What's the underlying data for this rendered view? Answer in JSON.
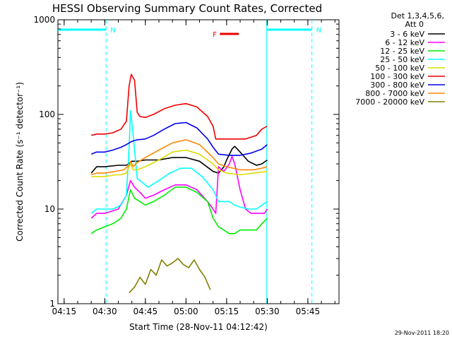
{
  "chart_data": {
    "type": "line",
    "title": "HESSI Observing Summary Count Rates, Corrected",
    "xlabel": "Start Time (28-Nov-11 04:12:42)",
    "ylabel": "Corrected Count Rate (s⁻¹ detector⁻¹)",
    "x_unit": "minutes",
    "x_ticks": [
      {
        "t": 15,
        "label": "04:15"
      },
      {
        "t": 30,
        "label": "04:30"
      },
      {
        "t": 45,
        "label": "04:45"
      },
      {
        "t": 60,
        "label": "05:00"
      },
      {
        "t": 75,
        "label": "05:15"
      },
      {
        "t": 90,
        "label": "05:30"
      },
      {
        "t": 105,
        "label": "05:45"
      }
    ],
    "xlim": [
      12.7,
      116.5
    ],
    "ylim": [
      1,
      1000
    ],
    "y_scale": "log",
    "y_ticks": [
      {
        "v": 1,
        "label": "1"
      },
      {
        "v": 10,
        "label": "10"
      },
      {
        "v": 100,
        "label": "100"
      },
      {
        "v": 1000,
        "label": "1000"
      }
    ],
    "legend_header": [
      "Det 1,3,4,5,6,",
      "Att 0"
    ],
    "legend_position": "top-right, outside plot",
    "series": [
      {
        "name": "3 - 6 keV",
        "color": "#000000",
        "x": [
          25,
          27,
          30,
          35,
          38,
          40,
          42,
          45,
          50,
          55,
          60,
          65,
          70,
          72,
          74,
          75,
          77,
          78,
          80,
          83,
          86,
          88,
          90
        ],
        "y": [
          24,
          28,
          28,
          29,
          29,
          32,
          32,
          33,
          33,
          35,
          35,
          32,
          25,
          24,
          28,
          33,
          43,
          46,
          40,
          32,
          29,
          30,
          33
        ]
      },
      {
        "name": "6 - 12 keV",
        "color": "#ff00ff",
        "x": [
          25,
          27,
          30,
          35,
          38,
          39.5,
          41,
          43,
          45,
          48,
          52,
          56,
          60,
          64,
          68,
          70,
          71,
          72,
          74,
          76,
          77,
          78,
          80,
          82,
          84,
          87,
          89,
          90
        ],
        "y": [
          8,
          9,
          9,
          10,
          14,
          20,
          17,
          15,
          13,
          14,
          16,
          18,
          18,
          16,
          12,
          10,
          9,
          28,
          25,
          30,
          36,
          30,
          16,
          10,
          9,
          9,
          9,
          10
        ]
      },
      {
        "name": "12 - 25 keV",
        "color": "#00ee00",
        "x": [
          25,
          27,
          30,
          33,
          36,
          38,
          39.5,
          41,
          43,
          45,
          48,
          52,
          56,
          60,
          64,
          68,
          70,
          72,
          74,
          76,
          78,
          80,
          83,
          86,
          88,
          90
        ],
        "y": [
          5.5,
          6,
          6.5,
          7,
          8,
          10,
          16,
          13,
          12,
          11,
          12,
          14,
          17,
          17,
          15,
          12,
          8,
          6.5,
          6,
          5.5,
          5.5,
          6,
          6,
          6,
          7,
          8
        ]
      },
      {
        "name": "25 - 50 keV",
        "color": "#00ffff",
        "x": [
          25,
          27,
          30,
          33,
          36,
          38,
          39,
          39.5,
          40.5,
          42,
          44,
          46,
          50,
          54,
          58,
          62,
          66,
          70,
          72,
          74,
          76,
          78,
          80,
          83,
          86,
          88,
          90
        ],
        "y": [
          9,
          10,
          10,
          10,
          11,
          14,
          45,
          110,
          60,
          21,
          19,
          17,
          20,
          24,
          27,
          27,
          22,
          16,
          12,
          12,
          12,
          11,
          10.5,
          10,
          10,
          11,
          12
        ]
      },
      {
        "name": "50 - 100 keV",
        "color": "#dddd00",
        "x": [
          25,
          27,
          30,
          34,
          36,
          38,
          39,
          39.5,
          40.5,
          42,
          45,
          50,
          55,
          60,
          65,
          70,
          72,
          75,
          80,
          85,
          90
        ],
        "y": [
          22,
          22,
          22,
          23,
          23,
          24,
          28,
          30,
          26,
          26,
          28,
          33,
          40,
          42,
          38,
          30,
          26,
          24,
          23,
          24,
          25
        ]
      },
      {
        "name": "100 - 300 keV",
        "color": "#ee0000",
        "x": [
          25,
          27,
          30,
          33,
          36,
          38,
          39,
          39.8,
          41,
          42,
          43,
          45,
          48,
          52,
          56,
          60,
          64,
          68,
          70,
          71,
          74,
          78,
          82,
          86,
          88,
          90
        ],
        "y": [
          60,
          62,
          62,
          64,
          70,
          85,
          200,
          265,
          230,
          105,
          95,
          93,
          100,
          115,
          125,
          130,
          120,
          95,
          75,
          55,
          55,
          55,
          55,
          60,
          70,
          75
        ]
      },
      {
        "name": "300 - 800 keV",
        "color": "#0000ee",
        "x": [
          25,
          27,
          30,
          33,
          36,
          38,
          40,
          42,
          45,
          48,
          52,
          56,
          60,
          64,
          68,
          70,
          72,
          76,
          80,
          84,
          88,
          90
        ],
        "y": [
          38,
          40,
          40,
          42,
          45,
          48,
          52,
          54,
          55,
          60,
          70,
          80,
          82,
          72,
          55,
          45,
          38,
          37,
          37,
          39,
          43,
          48
        ]
      },
      {
        "name": "800 - 7000 keV",
        "color": "#ff8800",
        "x": [
          25,
          27,
          30,
          34,
          37,
          39,
          39.5,
          40.5,
          42,
          45,
          50,
          55,
          60,
          65,
          70,
          72,
          75,
          80,
          85,
          88,
          90
        ],
        "y": [
          23,
          24,
          24,
          25,
          26,
          29,
          32,
          28,
          31,
          35,
          42,
          50,
          54,
          48,
          35,
          30,
          28,
          26,
          26,
          27,
          28
        ]
      },
      {
        "name": "7000 - 20000 keV",
        "color": "#808000",
        "x": [
          39,
          41,
          43,
          45,
          47,
          49,
          51,
          53,
          55,
          57,
          59,
          61,
          63,
          65,
          67,
          69
        ],
        "y": [
          1.3,
          1.5,
          1.9,
          1.6,
          2.3,
          2.0,
          2.9,
          2.5,
          2.7,
          3.0,
          2.6,
          2.4,
          2.9,
          2.3,
          1.9,
          1.4
        ]
      }
    ],
    "annotations": [
      {
        "label": "N",
        "color": "#00ffff",
        "x_start": 12.7,
        "x_end": 30.5
      },
      {
        "label": "N",
        "color": "#00ffff",
        "x_start": 89.8,
        "x_end": 106.5
      },
      {
        "label": "F",
        "color": "#ee0000",
        "x_start": 72.5,
        "x_end": 79.5
      }
    ],
    "grid": false
  },
  "footer": {
    "timestamp": "29-Nov-2011 18:20"
  }
}
